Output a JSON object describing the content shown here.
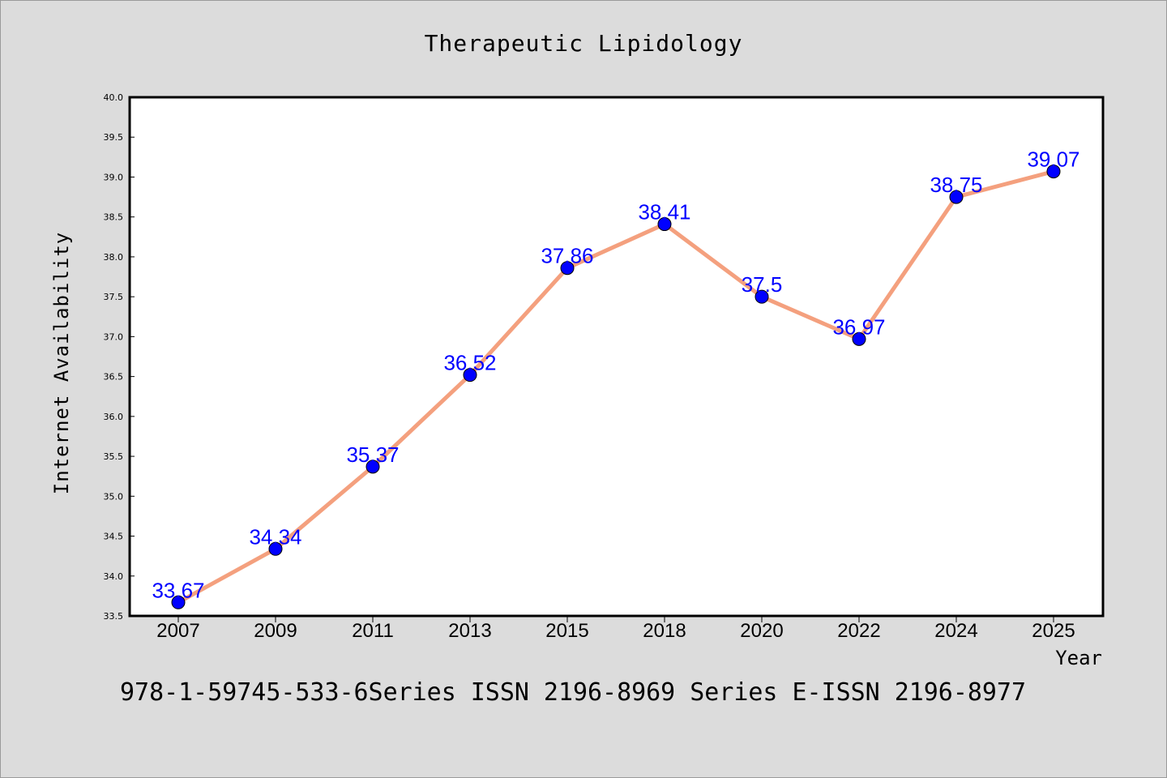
{
  "chart_data": {
    "type": "line",
    "title": "Therapeutic Lipidology",
    "xlabel": "Year",
    "ylabel": "Internet Availability",
    "footer": "978-1-59745-533-6Series ISSN 2196-8969 Series E-ISSN 2196-8977",
    "categories": [
      "2007",
      "2009",
      "2011",
      "2013",
      "2015",
      "2018",
      "2020",
      "2022",
      "2024",
      "2025"
    ],
    "series": [
      {
        "values": [
          33.67,
          34.34,
          35.37,
          36.52,
          37.86,
          38.41,
          37.5,
          36.97,
          38.75,
          39.07
        ],
        "labels": [
          "33.67",
          "34.34",
          "35.37",
          "36.52",
          "37.86",
          "38.41",
          "37.5",
          "36.97",
          "38.75",
          "39.07"
        ]
      }
    ],
    "ylim": [
      33.5,
      40.0
    ],
    "yticks": [
      "33.5",
      "34.0",
      "34.5",
      "35.0",
      "35.5",
      "36.0",
      "36.5",
      "37.0",
      "37.5",
      "38.0",
      "38.5",
      "39.0",
      "39.5",
      "40.0"
    ],
    "grid": false,
    "colors": {
      "line": "#f4a07e",
      "marker": "#0000ff",
      "label": "#0000ff",
      "background": "#dcdcdc",
      "plot_background": "#ffffff"
    }
  }
}
